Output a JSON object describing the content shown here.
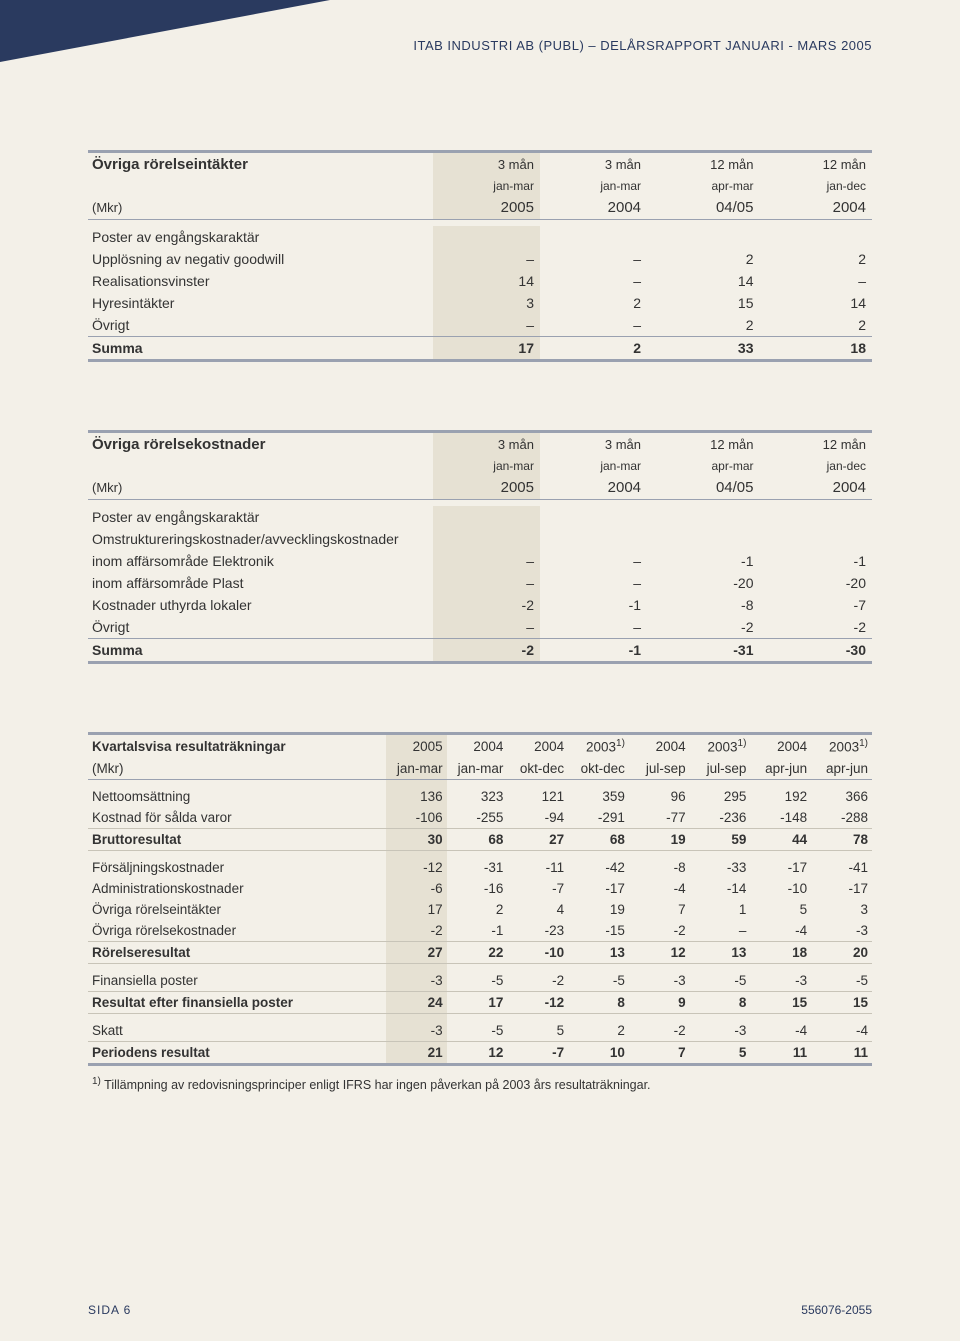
{
  "header": {
    "title": "ITAB INDUSTRI AB (PUBL) – DELÅRSRAPPORT JANUARI - MARS 2005"
  },
  "footer": {
    "left": "SIDA 6",
    "right": "556076-2055"
  },
  "table1": {
    "title": "Övriga rörelseintäkter",
    "unit": "(Mkr)",
    "cols": [
      {
        "top": "3 mån",
        "sub": "jan-mar",
        "year": "2005"
      },
      {
        "top": "3 mån",
        "sub": "jan-mar",
        "year": "2004"
      },
      {
        "top": "12 mån",
        "sub": "apr-mar",
        "year": "04/05"
      },
      {
        "top": "12 mån",
        "sub": "jan-dec",
        "year": "2004"
      }
    ],
    "section_label": "Poster av engångskaraktär",
    "rows": [
      {
        "label": "Upplösning av negativ goodwill",
        "vals": [
          "–",
          "–",
          "2",
          "2"
        ]
      },
      {
        "label": "Realisationsvinster",
        "vals": [
          "14",
          "–",
          "14",
          "–"
        ]
      },
      {
        "label": "Hyresintäkter",
        "vals": [
          "3",
          "2",
          "15",
          "14"
        ]
      },
      {
        "label": "Övrigt",
        "vals": [
          "–",
          "–",
          "2",
          "2"
        ]
      }
    ],
    "sum": {
      "label": "Summa",
      "vals": [
        "17",
        "2",
        "33",
        "18"
      ]
    }
  },
  "table2": {
    "title": "Övriga rörelsekostnader",
    "unit": "(Mkr)",
    "cols": [
      {
        "top": "3 mån",
        "sub": "jan-mar",
        "year": "2005"
      },
      {
        "top": "3 mån",
        "sub": "jan-mar",
        "year": "2004"
      },
      {
        "top": "12 mån",
        "sub": "apr-mar",
        "year": "04/05"
      },
      {
        "top": "12 mån",
        "sub": "jan-dec",
        "year": "2004"
      }
    ],
    "section_label": "Poster av engångskaraktär",
    "sub_label": "Omstruktureringskostnader/avvecklingskostnader",
    "rows": [
      {
        "label": "inom affärsområde Elektronik",
        "indent": 2,
        "vals": [
          "–",
          "–",
          "-1",
          "-1"
        ]
      },
      {
        "label": "inom affärsområde Plast",
        "indent": 2,
        "vals": [
          "–",
          "–",
          "-20",
          "-20"
        ]
      },
      {
        "label": "Kostnader uthyrda lokaler",
        "indent": 0,
        "vals": [
          "-2",
          "-1",
          "-8",
          "-7"
        ]
      },
      {
        "label": "Övrigt",
        "indent": 0,
        "vals": [
          "–",
          "–",
          "-2",
          "-2"
        ]
      }
    ],
    "sum": {
      "label": "Summa",
      "vals": [
        "-2",
        "-1",
        "-31",
        "-30"
      ]
    }
  },
  "table3": {
    "title": "Kvartalsvisa resultaträkningar",
    "unit": "(Mkr)",
    "cols": [
      {
        "year": "2005",
        "sub": "jan-mar"
      },
      {
        "year": "2004",
        "sub": "jan-mar"
      },
      {
        "year": "2004",
        "sub": "okt-dec"
      },
      {
        "year": "2003",
        "sup": "1)",
        "sub": "okt-dec"
      },
      {
        "year": "2004",
        "sub": "jul-sep"
      },
      {
        "year": "2003",
        "sup": "1)",
        "sub": "jul-sep"
      },
      {
        "year": "2004",
        "sub": "apr-jun"
      },
      {
        "year": "2003",
        "sup": "1)",
        "sub": "apr-jun"
      }
    ],
    "groups": [
      {
        "rows": [
          {
            "label": "Nettoomsättning",
            "vals": [
              "136",
              "323",
              "121",
              "359",
              "96",
              "295",
              "192",
              "366"
            ]
          },
          {
            "label": "Kostnad för sålda varor",
            "vals": [
              "-106",
              "-255",
              "-94",
              "-291",
              "-77",
              "-236",
              "-148",
              "-288"
            ]
          }
        ],
        "sum": {
          "label": "Bruttoresultat",
          "vals": [
            "30",
            "68",
            "27",
            "68",
            "19",
            "59",
            "44",
            "78"
          ]
        }
      },
      {
        "rows": [
          {
            "label": "Försäljningskostnader",
            "vals": [
              "-12",
              "-31",
              "-11",
              "-42",
              "-8",
              "-33",
              "-17",
              "-41"
            ]
          },
          {
            "label": "Administrationskostnader",
            "vals": [
              "-6",
              "-16",
              "-7",
              "-17",
              "-4",
              "-14",
              "-10",
              "-17"
            ]
          },
          {
            "label": "Övriga rörelseintäkter",
            "vals": [
              "17",
              "2",
              "4",
              "19",
              "7",
              "1",
              "5",
              "3"
            ]
          },
          {
            "label": "Övriga rörelsekostnader",
            "vals": [
              "-2",
              "-1",
              "-23",
              "-15",
              "-2",
              "–",
              "-4",
              "-3"
            ]
          }
        ],
        "sum": {
          "label": "Rörelseresultat",
          "vals": [
            "27",
            "22",
            "-10",
            "13",
            "12",
            "13",
            "18",
            "20"
          ]
        }
      },
      {
        "rows": [
          {
            "label": "Finansiella poster",
            "vals": [
              "-3",
              "-5",
              "-2",
              "-5",
              "-3",
              "-5",
              "-3",
              "-5"
            ]
          }
        ],
        "sum": {
          "label": "Resultat efter finansiella poster",
          "vals": [
            "24",
            "17",
            "-12",
            "8",
            "9",
            "8",
            "15",
            "15"
          ]
        }
      },
      {
        "rows": [
          {
            "label": "Skatt",
            "vals": [
              "-3",
              "-5",
              "5",
              "2",
              "-2",
              "-3",
              "-4",
              "-4"
            ]
          }
        ],
        "sum": {
          "label": "Periodens resultat",
          "vals": [
            "21",
            "12",
            "-7",
            "10",
            "7",
            "5",
            "11",
            "11"
          ]
        }
      }
    ],
    "footnote": "Tillämpning av redovisningsprinciper enligt IFRS har ingen påverkan på 2003 års resultaträkningar.",
    "footnote_sup": "1)"
  }
}
